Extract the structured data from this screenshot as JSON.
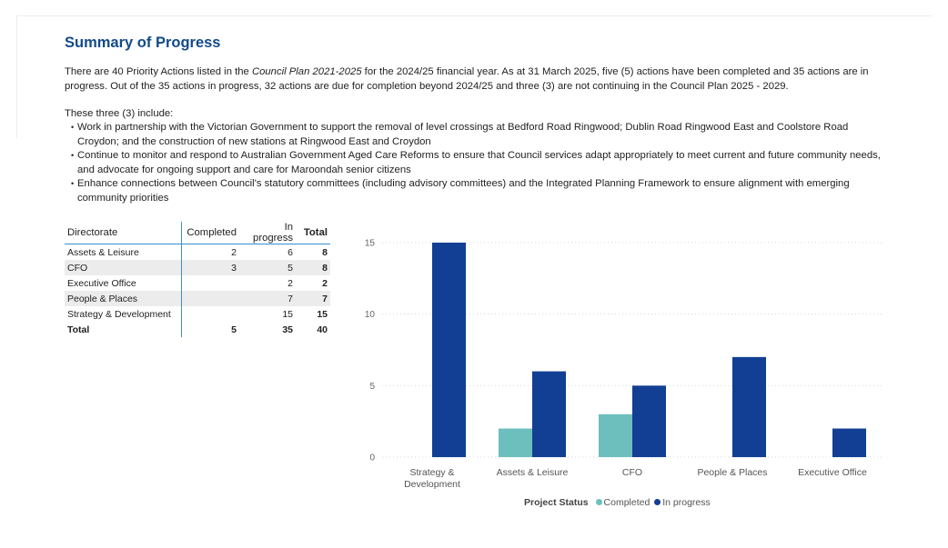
{
  "title": "Summary of Progress",
  "intro": {
    "before_italic": "There are 40 Priority Actions listed in the ",
    "italic": "Council Plan 2021-2025",
    "after_italic": " for the 2024/25 financial year.  As at 31 March 2025, five (5) actions have been completed and 35 actions are in progress.   Out of the 35 actions in progress, 32 actions are due for completion beyond 2024/25 and three (3) are not continuing in the Council Plan 2025 - 2029."
  },
  "include_heading": "These three (3) include:",
  "bullets": [
    "Work in partnership with the Victorian Government to support the removal of level crossings at Bedford Road Ringwood; Dublin Road Ringwood East and Coolstore Road Croydon; and the construction of new stations at Ringwood East and Croydon",
    "Continue to monitor and respond to Australian Government Aged Care Reforms to ensure that Council services adapt appropriately to meet current and future community needs, and advocate for ongoing support and care for Maroondah senior citizens",
    "Enhance connections between Council's statutory committees (including advisory committees) and the Integrated Planning Framework to ensure alignment with emerging community priorities"
  ],
  "table": {
    "headers": {
      "directorate": "Directorate",
      "completed": "Completed",
      "in_progress": "In progress",
      "total": "Total"
    },
    "rows": [
      {
        "directorate": "Assets & Leisure",
        "completed": "2",
        "in_progress": "6",
        "total": "8"
      },
      {
        "directorate": "CFO",
        "completed": "3",
        "in_progress": "5",
        "total": "8"
      },
      {
        "directorate": "Executive Office",
        "completed": "",
        "in_progress": "2",
        "total": "2"
      },
      {
        "directorate": "People & Places",
        "completed": "",
        "in_progress": "7",
        "total": "7"
      },
      {
        "directorate": "Strategy & Development",
        "completed": "",
        "in_progress": "15",
        "total": "15"
      }
    ],
    "total_row": {
      "directorate": "Total",
      "completed": "5",
      "in_progress": "35",
      "total": "40"
    }
  },
  "chart_data": {
    "type": "bar",
    "categories": [
      "Strategy & Development",
      "Assets & Leisure",
      "CFO",
      "People & Places",
      "Executive Office"
    ],
    "category_labels": [
      [
        "Strategy &",
        "Development"
      ],
      [
        "Assets & Leisure"
      ],
      [
        "CFO"
      ],
      [
        "People & Places"
      ],
      [
        "Executive Office"
      ]
    ],
    "series": [
      {
        "name": "Completed",
        "values": [
          0,
          2,
          3,
          0,
          0
        ],
        "color": "#6dbfbd"
      },
      {
        "name": "In progress",
        "values": [
          15,
          6,
          5,
          7,
          2
        ],
        "color": "#123f93"
      }
    ],
    "ylim": [
      0,
      15
    ],
    "yticks": [
      0,
      5,
      10,
      15
    ],
    "grid": true,
    "legend_title": "Project Status",
    "legend_position": "bottom",
    "xlabel": "",
    "ylabel": ""
  }
}
